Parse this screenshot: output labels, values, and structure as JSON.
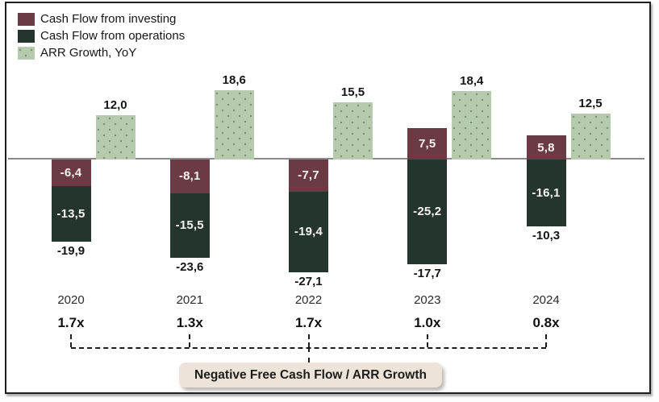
{
  "colors": {
    "investing": "#6b3a45",
    "operations": "#24352d",
    "arr_growth": "#b6cbae",
    "arr_dot": "#6e8c69",
    "axis": "#8b8b8b",
    "in_bar_text": "#f6f2ef",
    "outside_text": "#161616",
    "callout_bg": "#ece4d8",
    "frame_border": "#1f1f1f"
  },
  "legend": {
    "items": [
      {
        "label": "Cash Flow from investing",
        "swatch": "investing-swatch"
      },
      {
        "label": "Cash Flow from operations",
        "swatch": "operations-swatch"
      },
      {
        "label": "ARR Growth, YoY",
        "swatch": "arr-growth-swatch"
      }
    ]
  },
  "chart_data": {
    "type": "bar",
    "title": "",
    "categories": [
      "2020",
      "2021",
      "2022",
      "2023",
      "2024"
    ],
    "series": [
      {
        "name": "Cash Flow from investing",
        "values": [
          -6.4,
          -8.1,
          -7.7,
          7.5,
          5.8
        ],
        "labels": [
          "-6,4",
          "-8,1",
          "-7,7",
          "7,5",
          "5,8"
        ]
      },
      {
        "name": "Cash Flow from operations",
        "values": [
          -13.5,
          -15.5,
          -19.4,
          -25.2,
          -16.1
        ],
        "labels": [
          "-13,5",
          "-15,5",
          "-19,4",
          "-25,2",
          "-16,1"
        ]
      },
      {
        "name": "ARR Growth, YoY",
        "values": [
          12.0,
          18.6,
          15.5,
          18.4,
          12.5
        ],
        "labels": [
          "12,0",
          "18,6",
          "15,5",
          "18,4",
          "12,5"
        ]
      }
    ],
    "free_cash_flow_totals": {
      "values": [
        -19.9,
        -23.6,
        -27.1,
        -17.7,
        -10.3
      ],
      "labels": [
        "-19,9",
        "-23,6",
        "-27,1",
        "-17,7",
        "-10,3"
      ]
    },
    "ratios": [
      "1.7x",
      "1.3x",
      "1.7x",
      "1.0x",
      "0.8x"
    ],
    "annotation": "Negative Free Cash Flow / ARR Growth",
    "legend_position": "top-left",
    "grid": false,
    "zero_baseline": true,
    "bar_style": "stacked cash-flow bar with adjacent ARR growth bar per year"
  }
}
